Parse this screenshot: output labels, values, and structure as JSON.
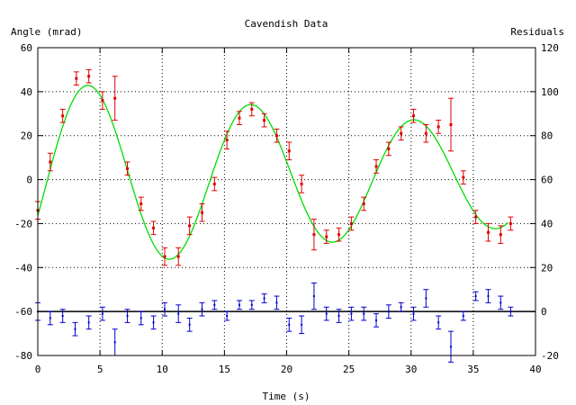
{
  "chart_data": {
    "type": "scatter",
    "title": "Cavendish Data",
    "xlabel": "Time (s)",
    "ylabel": "Angle (mrad)",
    "y2label": "Residuals",
    "xlim": [
      0,
      40
    ],
    "ylim": [
      -80,
      60
    ],
    "y2lim": [
      -20,
      120
    ],
    "x_ticks": [
      0,
      5,
      10,
      15,
      20,
      25,
      30,
      35,
      40
    ],
    "y_ticks": [
      -80,
      -60,
      -40,
      -20,
      0,
      20,
      40,
      60
    ],
    "y2_ticks": [
      -20,
      0,
      20,
      40,
      60,
      80,
      100,
      120
    ],
    "grid": true,
    "legend": "none",
    "zero_line": -60,
    "colors": {
      "data": "#e00000",
      "fit": "#00dd00",
      "residuals": "#0000cc",
      "zero_line": "#000000",
      "grid": "#000000"
    },
    "fit": {
      "model": "damped-sine",
      "amplitude": 45,
      "damping_tau": 56,
      "period": 13.1,
      "phase_peak_at": 4.1,
      "offset": 1,
      "x_range": [
        0,
        37.8
      ]
    },
    "data_points": [
      {
        "x": 0.0,
        "y": -14,
        "err": 4
      },
      {
        "x": 1.0,
        "y": 8,
        "err": 4
      },
      {
        "x": 2.0,
        "y": 29,
        "err": 3
      },
      {
        "x": 3.1,
        "y": 46,
        "err": 3
      },
      {
        "x": 4.1,
        "y": 47,
        "err": 3
      },
      {
        "x": 5.2,
        "y": 36,
        "err": 4
      },
      {
        "x": 6.2,
        "y": 37,
        "err": 10
      },
      {
        "x": 7.2,
        "y": 5,
        "err": 3
      },
      {
        "x": 8.3,
        "y": -11,
        "err": 3
      },
      {
        "x": 9.3,
        "y": -22,
        "err": 3
      },
      {
        "x": 10.2,
        "y": -35,
        "err": 4
      },
      {
        "x": 11.3,
        "y": -35,
        "err": 4
      },
      {
        "x": 12.2,
        "y": -21,
        "err": 4
      },
      {
        "x": 13.2,
        "y": -15,
        "err": 4
      },
      {
        "x": 14.2,
        "y": -2,
        "err": 3
      },
      {
        "x": 15.2,
        "y": 18,
        "err": 4
      },
      {
        "x": 16.2,
        "y": 28,
        "err": 3
      },
      {
        "x": 17.2,
        "y": 32,
        "err": 3
      },
      {
        "x": 18.2,
        "y": 27,
        "err": 3
      },
      {
        "x": 19.2,
        "y": 20,
        "err": 3
      },
      {
        "x": 20.2,
        "y": 13,
        "err": 4
      },
      {
        "x": 21.2,
        "y": -2,
        "err": 4
      },
      {
        "x": 22.2,
        "y": -25,
        "err": 7
      },
      {
        "x": 23.2,
        "y": -26,
        "err": 3
      },
      {
        "x": 24.2,
        "y": -25,
        "err": 3
      },
      {
        "x": 25.2,
        "y": -20,
        "err": 3
      },
      {
        "x": 26.2,
        "y": -11,
        "err": 3
      },
      {
        "x": 27.2,
        "y": 6,
        "err": 3
      },
      {
        "x": 28.2,
        "y": 14,
        "err": 3
      },
      {
        "x": 29.2,
        "y": 21,
        "err": 3
      },
      {
        "x": 30.2,
        "y": 29,
        "err": 3
      },
      {
        "x": 31.2,
        "y": 21,
        "err": 4
      },
      {
        "x": 32.2,
        "y": 24,
        "err": 3
      },
      {
        "x": 33.2,
        "y": 25,
        "err": 12
      },
      {
        "x": 34.2,
        "y": 1,
        "err": 3
      },
      {
        "x": 35.2,
        "y": -17,
        "err": 3
      },
      {
        "x": 36.2,
        "y": -24,
        "err": 4
      },
      {
        "x": 37.2,
        "y": -25,
        "err": 4
      },
      {
        "x": 38.0,
        "y": -20,
        "err": 3
      }
    ],
    "residuals": [
      {
        "x": 0.0,
        "y": 0,
        "err": 4
      },
      {
        "x": 1.0,
        "y": -3,
        "err": 3
      },
      {
        "x": 2.0,
        "y": -2,
        "err": 3
      },
      {
        "x": 3.0,
        "y": -8,
        "err": 3
      },
      {
        "x": 4.1,
        "y": -5,
        "err": 3
      },
      {
        "x": 5.2,
        "y": -1,
        "err": 3
      },
      {
        "x": 6.2,
        "y": -14,
        "err": 6
      },
      {
        "x": 7.2,
        "y": -2,
        "err": 3
      },
      {
        "x": 8.3,
        "y": -3,
        "err": 3
      },
      {
        "x": 9.3,
        "y": -5,
        "err": 3
      },
      {
        "x": 10.2,
        "y": 1,
        "err": 3
      },
      {
        "x": 11.3,
        "y": -1,
        "err": 4
      },
      {
        "x": 12.2,
        "y": -6,
        "err": 3
      },
      {
        "x": 13.2,
        "y": 1,
        "err": 3
      },
      {
        "x": 14.2,
        "y": 3,
        "err": 2
      },
      {
        "x": 15.2,
        "y": -2,
        "err": 2
      },
      {
        "x": 16.2,
        "y": 3,
        "err": 2
      },
      {
        "x": 17.2,
        "y": 3,
        "err": 2
      },
      {
        "x": 18.2,
        "y": 6,
        "err": 2
      },
      {
        "x": 19.2,
        "y": 4,
        "err": 3
      },
      {
        "x": 20.2,
        "y": -6,
        "err": 3
      },
      {
        "x": 21.2,
        "y": -6,
        "err": 4
      },
      {
        "x": 22.2,
        "y": 7,
        "err": 6
      },
      {
        "x": 23.2,
        "y": -1,
        "err": 3
      },
      {
        "x": 24.2,
        "y": -2,
        "err": 3
      },
      {
        "x": 25.2,
        "y": -1,
        "err": 3
      },
      {
        "x": 26.2,
        "y": -1,
        "err": 3
      },
      {
        "x": 27.2,
        "y": -4,
        "err": 3
      },
      {
        "x": 28.2,
        "y": 0,
        "err": 3
      },
      {
        "x": 29.2,
        "y": 2,
        "err": 2
      },
      {
        "x": 30.2,
        "y": -1,
        "err": 3
      },
      {
        "x": 31.2,
        "y": 6,
        "err": 4
      },
      {
        "x": 32.2,
        "y": -5,
        "err": 3
      },
      {
        "x": 33.2,
        "y": -16,
        "err": 7
      },
      {
        "x": 34.2,
        "y": -2,
        "err": 2
      },
      {
        "x": 35.2,
        "y": 7,
        "err": 2
      },
      {
        "x": 36.2,
        "y": 7,
        "err": 3
      },
      {
        "x": 37.2,
        "y": 4,
        "err": 3
      },
      {
        "x": 38.0,
        "y": 0,
        "err": 2
      }
    ]
  }
}
